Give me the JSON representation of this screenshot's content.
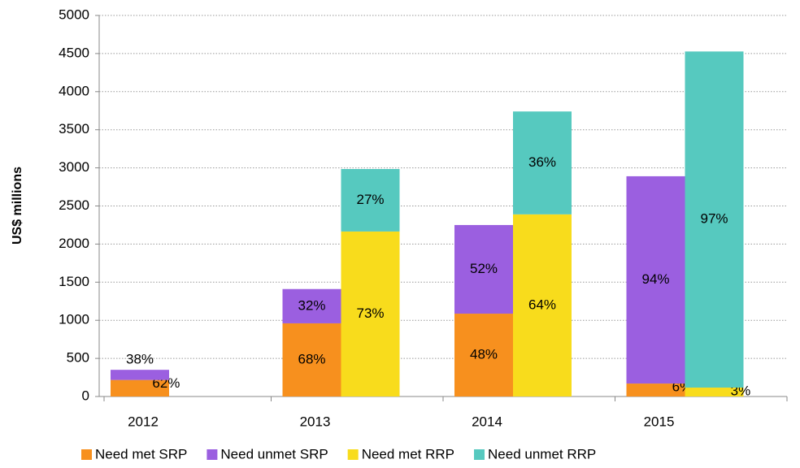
{
  "chart_data": {
    "type": "bar",
    "ylabel": "US$ millions",
    "categories": [
      "2012",
      "2013",
      "2014",
      "2015"
    ],
    "ylim": [
      0,
      5000
    ],
    "yticks": [
      0,
      500,
      1000,
      1500,
      2000,
      2500,
      3000,
      3500,
      4000,
      4500,
      5000
    ],
    "grid": true,
    "legend": "bottom",
    "series": [
      {
        "name": "Need met SRP",
        "color": "#f7901e",
        "stack": 0,
        "values": [
          217,
          960,
          1087,
          170
        ],
        "segment_labels": [
          "62%",
          "68%",
          "48%",
          "6%"
        ]
      },
      {
        "name": "Need unmet SRP",
        "color": "#9b5fe0",
        "stack": 0,
        "values": [
          133,
          450,
          1163,
          2720
        ],
        "segment_labels": [
          "38%",
          "32%",
          "52%",
          "94%"
        ]
      },
      {
        "name": "Need met RRP",
        "color": "#f8dc1c",
        "stack": 1,
        "values": [
          null,
          2165,
          2390,
          117
        ],
        "segment_labels": [
          null,
          "73%",
          "64%",
          "3%"
        ]
      },
      {
        "name": "Need unmet RRP",
        "color": "#56c9bf",
        "stack": 1,
        "values": [
          null,
          820,
          1350,
          4410
        ],
        "segment_labels": [
          null,
          "27%",
          "36%",
          "97%"
        ]
      }
    ]
  }
}
